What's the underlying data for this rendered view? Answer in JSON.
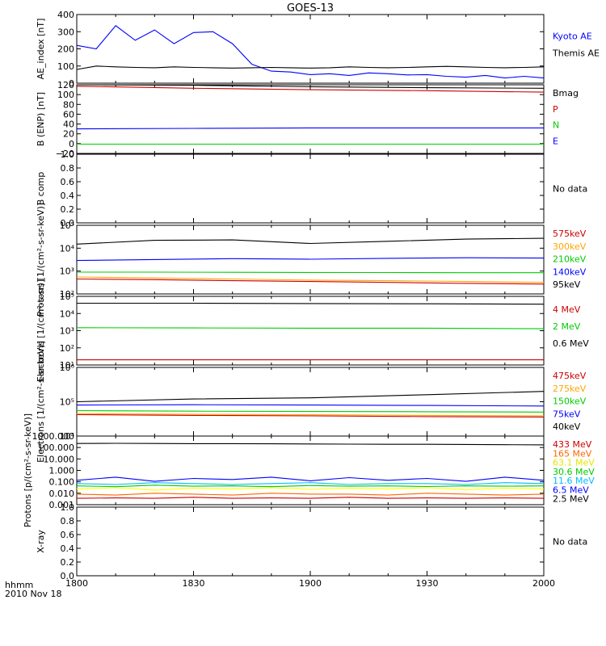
{
  "title": "GOES-13",
  "x_ticks": [
    "1800",
    "1830",
    "1900",
    "1930",
    "2000"
  ],
  "x_footer": {
    "line1": "hhmm",
    "line2": "2010 Nov 18"
  },
  "chart_data": [
    {
      "type": "line",
      "id": "ae",
      "ylabel": "AE_index [nT]",
      "ylim": [
        0,
        400
      ],
      "log": false,
      "yticks": [
        "0",
        "100",
        "200",
        "300",
        "400"
      ],
      "x": [
        0,
        5,
        10,
        15,
        20,
        25,
        30,
        35,
        40,
        45,
        50,
        55,
        60,
        65,
        70,
        75,
        80,
        85,
        90,
        95,
        100,
        105,
        110,
        115,
        120
      ],
      "series": [
        {
          "name": "Kyoto AE",
          "color": "#0000ff",
          "values": [
            220,
            200,
            335,
            250,
            310,
            230,
            295,
            300,
            230,
            110,
            70,
            65,
            50,
            55,
            45,
            60,
            55,
            48,
            50,
            40,
            35,
            45,
            30,
            40,
            30
          ]
        },
        {
          "name": "Themis AE",
          "color": "#000000",
          "values": [
            80,
            100,
            95,
            92,
            90,
            95,
            92,
            90,
            88,
            90,
            92,
            90,
            88,
            90,
            95,
            92,
            90,
            92,
            95,
            98,
            95,
            92,
            90,
            92,
            95
          ]
        }
      ]
    },
    {
      "type": "line",
      "id": "bfield",
      "ylabel": "B (ENP) [nT]",
      "ylim": [
        -20,
        120
      ],
      "log": false,
      "yticks": [
        "−20",
        "0",
        "20",
        "40",
        "60",
        "80",
        "100",
        "120"
      ],
      "x": [
        0,
        30,
        60,
        90,
        120
      ],
      "series": [
        {
          "name": "Bmag",
          "color": "#000000",
          "values": [
            120,
            119,
            116,
            114,
            113
          ]
        },
        {
          "name": "P",
          "color": "#cc0000",
          "values": [
            117,
            113,
            110,
            108,
            105
          ]
        },
        {
          "name": "N",
          "color": "#00cc00",
          "values": [
            -1,
            -1,
            -1,
            -1,
            -1
          ]
        },
        {
          "name": "E",
          "color": "#0000ff",
          "values": [
            30,
            31,
            32,
            32,
            32
          ]
        }
      ]
    },
    {
      "type": "line",
      "id": "bcomp",
      "ylabel": "B comp",
      "ylim": [
        0,
        1
      ],
      "log": false,
      "yticks": [
        "0.0",
        "0.2",
        "0.4",
        "0.6",
        "0.8",
        "1.0"
      ],
      "series": [],
      "status": "No data"
    },
    {
      "type": "line",
      "id": "protons_kev",
      "ylabel": "Protons [1/(cm²-s-sr-keV)]",
      "ylim": [
        100,
        100000
      ],
      "log": true,
      "yticks": [
        "10²",
        "10³",
        "10⁴",
        "10⁵"
      ],
      "x": [
        0,
        20,
        40,
        60,
        80,
        100,
        120
      ],
      "series": [
        {
          "name": "575keV",
          "color": "#cc0000",
          "values": [
            450,
            420,
            380,
            350,
            320,
            290,
            270
          ]
        },
        {
          "name": "300keV",
          "color": "#ffa500",
          "values": [
            550,
            500,
            450,
            400,
            380,
            350,
            320
          ]
        },
        {
          "name": "210keV",
          "color": "#00cc00",
          "values": [
            900,
            900,
            880,
            870,
            860,
            850,
            850
          ]
        },
        {
          "name": "140keV",
          "color": "#0000ff",
          "values": [
            2900,
            3200,
            3500,
            3300,
            3600,
            3800,
            3700
          ]
        },
        {
          "name": "95keV",
          "color": "#000000",
          "values": [
            15000,
            22000,
            23000,
            16000,
            20000,
            25000,
            27000
          ]
        }
      ]
    },
    {
      "type": "line",
      "id": "electrons_mev",
      "ylabel": "Electrons [1/(cm²-s-sr)]",
      "ylim": [
        10,
        100000
      ],
      "log": true,
      "yticks": [
        "10¹",
        "10²",
        "10³",
        "10⁴",
        "10⁵"
      ],
      "x": [
        0,
        30,
        60,
        90,
        120
      ],
      "series": [
        {
          "name": "4 MeV",
          "color": "#cc0000",
          "values": [
            20,
            20,
            20,
            20,
            20
          ]
        },
        {
          "name": "2 MeV",
          "color": "#00cc00",
          "values": [
            1500,
            1450,
            1400,
            1400,
            1300
          ]
        },
        {
          "name": "0.6 MeV",
          "color": "#000000",
          "values": [
            40000,
            40000,
            38000,
            37000,
            35000
          ]
        }
      ]
    },
    {
      "type": "line",
      "id": "electrons_kev",
      "ylabel": "Electrons [1/(cm²-s-sr-keV)]",
      "ylim": [
        10000,
        1000000
      ],
      "log": true,
      "yticks": [
        "10⁴",
        "10⁵",
        "10⁶"
      ],
      "x": [
        0,
        30,
        60,
        90,
        120
      ],
      "series": [
        {
          "name": "475keV",
          "color": "#cc0000",
          "values": [
            42000,
            40000,
            39000,
            37000,
            36000
          ]
        },
        {
          "name": "275keV",
          "color": "#ffa500",
          "values": [
            45000,
            43000,
            42000,
            40000,
            39000
          ]
        },
        {
          "name": "150keV",
          "color": "#00cc00",
          "values": [
            55000,
            53000,
            52000,
            51000,
            50000
          ]
        },
        {
          "name": "75keV",
          "color": "#0000ff",
          "values": [
            80000,
            82000,
            80000,
            78000,
            75000
          ]
        },
        {
          "name": "40keV",
          "color": "#000000",
          "values": [
            100000,
            120000,
            130000,
            160000,
            200000
          ]
        }
      ]
    },
    {
      "type": "line",
      "id": "protons_mev",
      "ylabel": "Protons [p/(cm²-s-sr-keV)]",
      "ylim": [
        0.0005,
        1500
      ],
      "log": true,
      "yticks": [
        "0.001",
        "0.010",
        "0.100",
        "1.000",
        "10.000",
        "100.000",
        "1000.000"
      ],
      "x": [
        0,
        10,
        20,
        30,
        40,
        50,
        60,
        70,
        80,
        90,
        100,
        110,
        120
      ],
      "series": [
        {
          "name": "433 MeV",
          "color": "#cc0000",
          "values": [
            0.002,
            0.0022,
            0.002,
            0.0025,
            0.002,
            0.0022,
            0.002,
            0.0025,
            0.002,
            0.0022,
            0.002,
            0.0022,
            0.002
          ]
        },
        {
          "name": "165 MeV",
          "color": "#ff6600",
          "values": [
            0.005,
            0.004,
            0.006,
            0.005,
            0.004,
            0.006,
            0.005,
            0.005,
            0.004,
            0.006,
            0.005,
            0.004,
            0.005
          ]
        },
        {
          "name": "63.1 MeV",
          "color": "#ffff00",
          "values": [
            0.015,
            0.02,
            0.012,
            0.018,
            0.015,
            0.02,
            0.014,
            0.018,
            0.015,
            0.02,
            0.013,
            0.018,
            0.015
          ]
        },
        {
          "name": "30.6 MeV",
          "color": "#00cc00",
          "values": [
            0.03,
            0.025,
            0.035,
            0.028,
            0.03,
            0.025,
            0.032,
            0.028,
            0.03,
            0.026,
            0.03,
            0.028,
            0.03
          ]
        },
        {
          "name": "11.6 MeV",
          "color": "#00bbff",
          "values": [
            0.05,
            0.04,
            0.06,
            0.05,
            0.04,
            0.05,
            0.06,
            0.04,
            0.05,
            0.05,
            0.04,
            0.06,
            0.05
          ]
        },
        {
          "name": "6.5 MeV",
          "color": "#0000ff",
          "values": [
            0.1,
            0.2,
            0.08,
            0.15,
            0.12,
            0.2,
            0.09,
            0.18,
            0.1,
            0.15,
            0.08,
            0.2,
            0.1
          ]
        },
        {
          "name": "2.5 MeV",
          "color": "#000000",
          "values": [
            300,
            310,
            300,
            290,
            290,
            280,
            270,
            260,
            250,
            250,
            240,
            230,
            220
          ]
        }
      ]
    },
    {
      "type": "line",
      "id": "xray",
      "ylabel": "X-ray",
      "ylim": [
        0,
        1
      ],
      "log": false,
      "yticks": [
        "0.0",
        "0.2",
        "0.4",
        "0.6",
        "0.8",
        "1.0"
      ],
      "series": [],
      "status": "No data"
    }
  ]
}
